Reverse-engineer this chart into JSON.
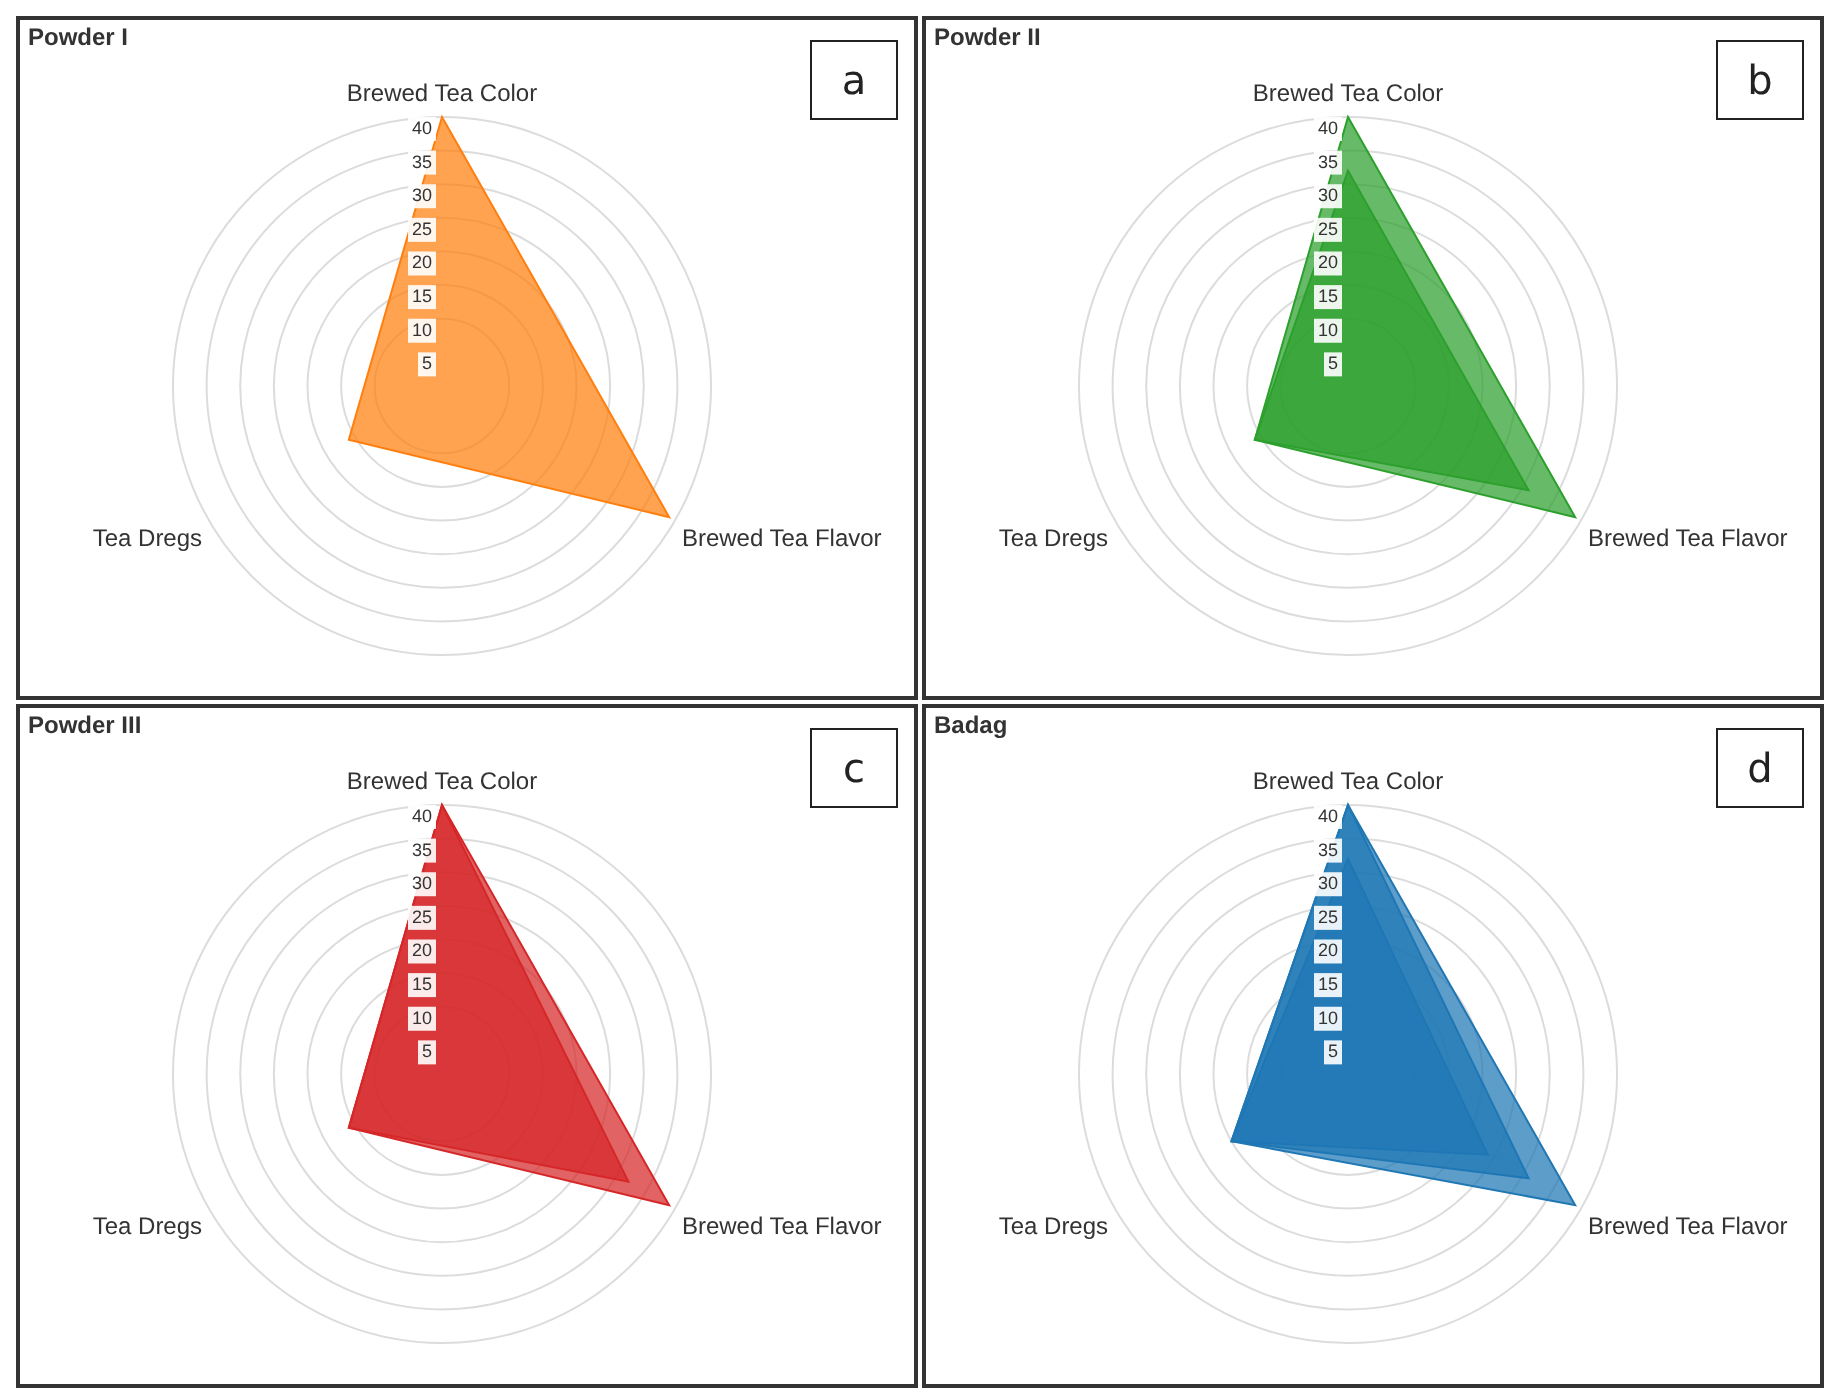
{
  "chart_data": [
    {
      "type": "radar",
      "title": "Powder I",
      "categories": [
        "Brewed Tea Color",
        "Brewed Tea Flavor",
        "Tea Dregs"
      ],
      "ylim": [
        0,
        40
      ],
      "yticks": [
        5,
        10,
        15,
        20,
        25,
        30,
        35,
        40
      ],
      "grid": true,
      "marker": "none",
      "annotations": [
        "a"
      ],
      "series": [
        {
          "color": "#ff7f0e",
          "values": [
            40,
            39,
            16
          ]
        }
      ]
    },
    {
      "type": "radar",
      "title": "Powder II",
      "categories": [
        "Brewed Tea Color",
        "Brewed Tea Flavor",
        "Tea Dregs"
      ],
      "ylim": [
        0,
        40
      ],
      "yticks": [
        5,
        10,
        15,
        20,
        25,
        30,
        35,
        40
      ],
      "grid": true,
      "marker": "none",
      "annotations": [
        "b"
      ],
      "series": [
        {
          "color": "#2ca02c",
          "values": [
            40,
            39,
            16
          ]
        },
        {
          "color": "#2ca02c",
          "values": [
            32,
            31,
            16
          ]
        }
      ]
    },
    {
      "type": "radar",
      "title": "Powder III",
      "categories": [
        "Brewed Tea Color",
        "Brewed Tea Flavor",
        "Tea Dregs"
      ],
      "ylim": [
        0,
        40
      ],
      "yticks": [
        5,
        10,
        15,
        20,
        25,
        30,
        35,
        40
      ],
      "grid": true,
      "marker": "none",
      "annotations": [
        "c"
      ],
      "series": [
        {
          "color": "#d62728",
          "values": [
            40,
            39,
            16
          ]
        },
        {
          "color": "#d62728",
          "values": [
            40,
            32,
            16
          ]
        }
      ]
    },
    {
      "type": "radar",
      "title": "Badag",
      "categories": [
        "Brewed Tea Color",
        "Brewed Tea Flavor",
        "Tea Dregs"
      ],
      "ylim": [
        0,
        40
      ],
      "yticks": [
        5,
        10,
        15,
        20,
        25,
        30,
        35,
        40
      ],
      "grid": true,
      "marker": "none",
      "annotations": [
        "d"
      ],
      "series": [
        {
          "color": "#1f77b4",
          "values": [
            40,
            39,
            20
          ]
        },
        {
          "color": "#1f77b4",
          "values": [
            40,
            31,
            20
          ]
        },
        {
          "color": "#1f77b4",
          "values": [
            32,
            24,
            20
          ]
        }
      ]
    }
  ]
}
